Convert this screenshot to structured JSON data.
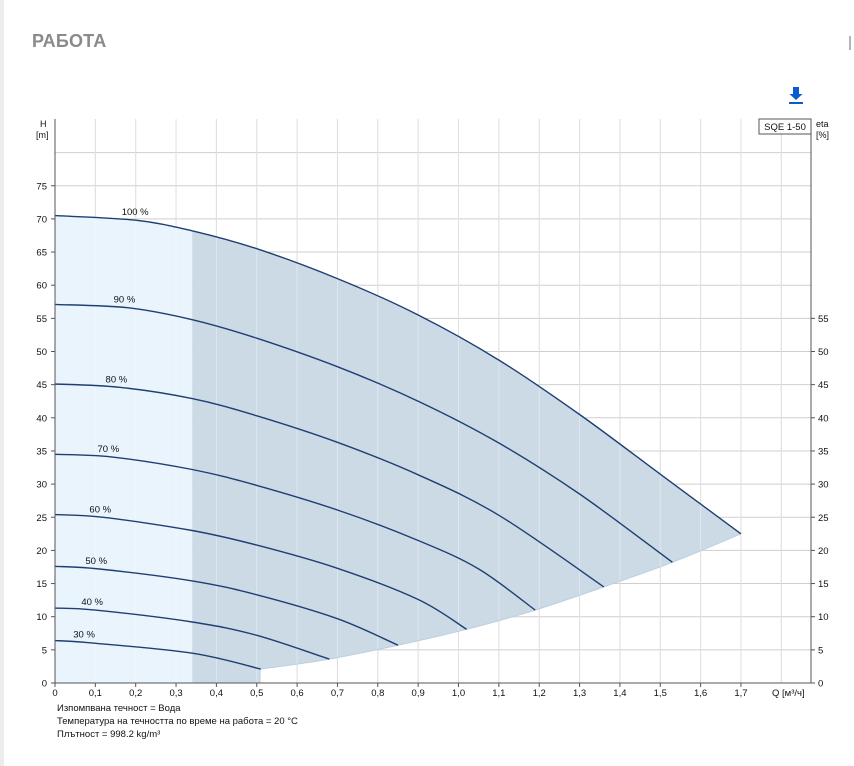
{
  "section": {
    "title": "РАБОТА"
  },
  "toolbar": {
    "download_icon": "download-icon"
  },
  "chart_data": {
    "type": "line",
    "pump_label": "SQE 1-50",
    "y_axis_left": {
      "name": "H",
      "unit": "[m]",
      "ylim": [
        0,
        82
      ],
      "ticks": [
        0,
        5,
        10,
        15,
        20,
        25,
        30,
        35,
        40,
        45,
        50,
        55,
        60,
        65,
        70,
        75
      ]
    },
    "y_axis_right": {
      "name": "eta",
      "unit": "[%]",
      "ticks": [
        0,
        5,
        10,
        15,
        20,
        25,
        30,
        35,
        40,
        45,
        50,
        55
      ]
    },
    "x_axis": {
      "unit_label": "Q [м³/ч]",
      "xlim": [
        0,
        1.87
      ],
      "ticks": [
        "0",
        "0,1",
        "0,2",
        "0,3",
        "0,4",
        "0,5",
        "0,6",
        "0,7",
        "0,8",
        "0,9",
        "1,0",
        "1,1",
        "1,2",
        "1,3",
        "1,4",
        "1,5",
        "1,6",
        "1,7"
      ]
    },
    "recommended_region_start_q": 0.34,
    "series": [
      {
        "name": "100 %",
        "label_q": 0.2,
        "points": [
          [
            0,
            70.5
          ],
          [
            0.2,
            69.8
          ],
          [
            0.34,
            68.2
          ],
          [
            0.5,
            65.5
          ],
          [
            0.7,
            61
          ],
          [
            0.9,
            55.5
          ],
          [
            1.1,
            48.7
          ],
          [
            1.3,
            40.5
          ],
          [
            1.5,
            31.5
          ],
          [
            1.7,
            22.5
          ]
        ]
      },
      {
        "name": "90 %",
        "label_q": 0.18,
        "points": [
          [
            0,
            57.1
          ],
          [
            0.18,
            56.6
          ],
          [
            0.34,
            54.8
          ],
          [
            0.5,
            52
          ],
          [
            0.7,
            47.7
          ],
          [
            0.9,
            42.5
          ],
          [
            1.1,
            36.2
          ],
          [
            1.3,
            28.5
          ],
          [
            1.53,
            18.2
          ]
        ]
      },
      {
        "name": "80 %",
        "label_q": 0.16,
        "points": [
          [
            0,
            45.1
          ],
          [
            0.16,
            44.6
          ],
          [
            0.34,
            42.9
          ],
          [
            0.5,
            40.3
          ],
          [
            0.7,
            36.3
          ],
          [
            0.9,
            31.4
          ],
          [
            1.1,
            25.3
          ],
          [
            1.36,
            14.5
          ]
        ]
      },
      {
        "name": "70 %",
        "label_q": 0.14,
        "points": [
          [
            0,
            34.5
          ],
          [
            0.14,
            34.1
          ],
          [
            0.34,
            32.2
          ],
          [
            0.5,
            29.8
          ],
          [
            0.7,
            26.1
          ],
          [
            0.9,
            21.5
          ],
          [
            1.05,
            17.2
          ],
          [
            1.19,
            11
          ]
        ]
      },
      {
        "name": "60 %",
        "label_q": 0.12,
        "points": [
          [
            0,
            25.4
          ],
          [
            0.12,
            25
          ],
          [
            0.34,
            23
          ],
          [
            0.5,
            20.8
          ],
          [
            0.7,
            17.3
          ],
          [
            0.9,
            12.6
          ],
          [
            1.02,
            8.1
          ]
        ]
      },
      {
        "name": "50 %",
        "label_q": 0.11,
        "points": [
          [
            0,
            17.6
          ],
          [
            0.11,
            17.2
          ],
          [
            0.34,
            15.4
          ],
          [
            0.5,
            13.3
          ],
          [
            0.7,
            9.7
          ],
          [
            0.85,
            5.7
          ]
        ]
      },
      {
        "name": "40 %",
        "label_q": 0.1,
        "points": [
          [
            0,
            11.3
          ],
          [
            0.1,
            11
          ],
          [
            0.34,
            9.2
          ],
          [
            0.5,
            7.2
          ],
          [
            0.68,
            3.6
          ]
        ]
      },
      {
        "name": "30 %",
        "label_q": 0.08,
        "points": [
          [
            0,
            6.4
          ],
          [
            0.08,
            6.1
          ],
          [
            0.34,
            4.5
          ],
          [
            0.51,
            2.1
          ]
        ]
      }
    ],
    "min_curve": [
      [
        0.51,
        2.1
      ],
      [
        0.68,
        3.6
      ],
      [
        0.85,
        5.7
      ],
      [
        1.02,
        8.1
      ],
      [
        1.19,
        11
      ],
      [
        1.36,
        14.5
      ],
      [
        1.53,
        18.2
      ],
      [
        1.7,
        22.5
      ]
    ],
    "grid": true,
    "colors": {
      "curve": "#1f3f73",
      "fill_left": "#e9f4fd",
      "fill_right": "#ccdae6",
      "grid": "#cfcfcf",
      "accent": "#0b5bd3"
    }
  },
  "notes": [
    "Изпомпвана течност = Вода",
    "Температура на течността по време на работа = 20 °C",
    "Плътност = 998.2 kg/m³"
  ]
}
